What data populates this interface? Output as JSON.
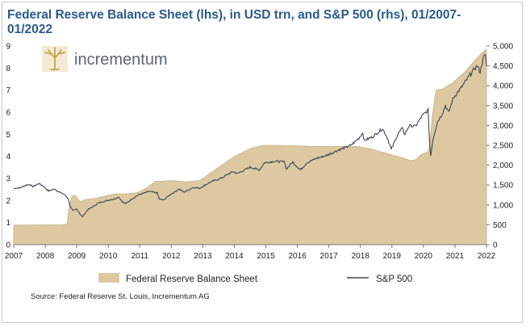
{
  "header": {
    "title": "Federal Reserve Balance Sheet (lhs), in USD trn, and S&P 500 (rhs), 01/2007-01/2022"
  },
  "logo": {
    "text": "incrementum"
  },
  "footer": {
    "source": "Source: Federal Reserve St. Louis, Incrementum AG"
  },
  "colors": {
    "fed_fill": "#dcc9a2",
    "fed_edge": "#c7ad80",
    "sp_line": "#3b4452",
    "title": "#2b5a8a",
    "logo_text": "#5a6470",
    "logo_gold": "#c9a24a"
  },
  "chart_data": {
    "type": "area",
    "title": "Federal Reserve Balance Sheet (lhs), in USD trn, and S&P 500 (rhs), 01/2007-01/2022",
    "x_ticks": [
      "2007",
      "2008",
      "2009",
      "2010",
      "2011",
      "2012",
      "2013",
      "2014",
      "2015",
      "2016",
      "2017",
      "2018",
      "2019",
      "2020",
      "2021",
      "2022"
    ],
    "xlim": [
      2007,
      2022
    ],
    "y_left": {
      "ticks": [
        "0",
        "1",
        "2",
        "3",
        "4",
        "5",
        "6",
        "7",
        "8",
        "9"
      ],
      "lim": [
        0,
        9
      ]
    },
    "y_right": {
      "ticks": [
        "0",
        "500",
        "1,000",
        "1,500",
        "2,000",
        "2,500",
        "3,000",
        "3,500",
        "4,000",
        "4,500",
        "5,000"
      ],
      "lim": [
        0,
        5000
      ]
    },
    "legend": "bottom",
    "grid": false,
    "series": [
      {
        "name": "Federal Reserve Balance Sheet",
        "type": "area",
        "axis": "left",
        "points": [
          [
            2007.0,
            0.88
          ],
          [
            2008.5,
            0.9
          ],
          [
            2008.7,
            0.93
          ],
          [
            2008.72,
            1.3
          ],
          [
            2008.78,
            1.85
          ],
          [
            2008.85,
            2.2
          ],
          [
            2008.95,
            2.24
          ],
          [
            2009.1,
            1.95
          ],
          [
            2009.3,
            2.05
          ],
          [
            2009.6,
            2.1
          ],
          [
            2009.9,
            2.2
          ],
          [
            2010.2,
            2.3
          ],
          [
            2010.6,
            2.3
          ],
          [
            2010.9,
            2.35
          ],
          [
            2011.2,
            2.55
          ],
          [
            2011.5,
            2.86
          ],
          [
            2012.0,
            2.9
          ],
          [
            2012.5,
            2.85
          ],
          [
            2012.9,
            2.9
          ],
          [
            2013.2,
            3.2
          ],
          [
            2013.6,
            3.6
          ],
          [
            2014.0,
            4.0
          ],
          [
            2014.5,
            4.35
          ],
          [
            2014.9,
            4.5
          ],
          [
            2015.5,
            4.5
          ],
          [
            2016.5,
            4.45
          ],
          [
            2017.5,
            4.45
          ],
          [
            2017.9,
            4.45
          ],
          [
            2018.3,
            4.35
          ],
          [
            2018.8,
            4.15
          ],
          [
            2019.3,
            3.95
          ],
          [
            2019.6,
            3.8
          ],
          [
            2019.75,
            3.85
          ],
          [
            2019.95,
            4.1
          ],
          [
            2020.15,
            4.2
          ],
          [
            2020.2,
            4.5
          ],
          [
            2020.28,
            5.8
          ],
          [
            2020.4,
            7.0
          ],
          [
            2020.6,
            7.05
          ],
          [
            2020.9,
            7.3
          ],
          [
            2021.3,
            7.8
          ],
          [
            2021.6,
            8.3
          ],
          [
            2021.9,
            8.75
          ],
          [
            2022.0,
            8.85
          ]
        ]
      },
      {
        "name": "S&P 500",
        "type": "line",
        "axis": "right",
        "points": [
          [
            2007.0,
            1420
          ],
          [
            2007.2,
            1430
          ],
          [
            2007.4,
            1500
          ],
          [
            2007.5,
            1520
          ],
          [
            2007.6,
            1460
          ],
          [
            2007.8,
            1540
          ],
          [
            2007.95,
            1470
          ],
          [
            2008.1,
            1350
          ],
          [
            2008.3,
            1400
          ],
          [
            2008.45,
            1320
          ],
          [
            2008.6,
            1270
          ],
          [
            2008.72,
            1170
          ],
          [
            2008.8,
            950
          ],
          [
            2008.88,
            850
          ],
          [
            2009.0,
            900
          ],
          [
            2009.1,
            780
          ],
          [
            2009.18,
            700
          ],
          [
            2009.35,
            880
          ],
          [
            2009.5,
            950
          ],
          [
            2009.7,
            1050
          ],
          [
            2009.95,
            1110
          ],
          [
            2010.2,
            1150
          ],
          [
            2010.33,
            1200
          ],
          [
            2010.45,
            1080
          ],
          [
            2010.55,
            1030
          ],
          [
            2010.75,
            1150
          ],
          [
            2010.95,
            1250
          ],
          [
            2011.3,
            1340
          ],
          [
            2011.55,
            1300
          ],
          [
            2011.62,
            1150
          ],
          [
            2011.75,
            1120
          ],
          [
            2011.95,
            1250
          ],
          [
            2012.25,
            1400
          ],
          [
            2012.4,
            1320
          ],
          [
            2012.7,
            1440
          ],
          [
            2012.9,
            1420
          ],
          [
            2013.2,
            1560
          ],
          [
            2013.6,
            1680
          ],
          [
            2013.95,
            1840
          ],
          [
            2014.1,
            1790
          ],
          [
            2014.5,
            1950
          ],
          [
            2014.8,
            1880
          ],
          [
            2014.95,
            2060
          ],
          [
            2015.3,
            2100
          ],
          [
            2015.6,
            2080
          ],
          [
            2015.65,
            1900
          ],
          [
            2015.85,
            2080
          ],
          [
            2016.1,
            1880
          ],
          [
            2016.3,
            2060
          ],
          [
            2016.6,
            2170
          ],
          [
            2016.9,
            2240
          ],
          [
            2017.3,
            2380
          ],
          [
            2017.7,
            2500
          ],
          [
            2017.95,
            2680
          ],
          [
            2018.08,
            2820
          ],
          [
            2018.12,
            2620
          ],
          [
            2018.4,
            2720
          ],
          [
            2018.7,
            2920
          ],
          [
            2018.85,
            2700
          ],
          [
            2018.98,
            2400
          ],
          [
            2019.2,
            2800
          ],
          [
            2019.35,
            2940
          ],
          [
            2019.4,
            2760
          ],
          [
            2019.55,
            3000
          ],
          [
            2019.75,
            2980
          ],
          [
            2019.95,
            3230
          ],
          [
            2020.1,
            3350
          ],
          [
            2020.15,
            3380
          ],
          [
            2020.2,
            2500
          ],
          [
            2020.23,
            2240
          ],
          [
            2020.3,
            2650
          ],
          [
            2020.45,
            3100
          ],
          [
            2020.6,
            3300
          ],
          [
            2020.7,
            3500
          ],
          [
            2020.8,
            3320
          ],
          [
            2020.95,
            3700
          ],
          [
            2021.2,
            3950
          ],
          [
            2021.5,
            4300
          ],
          [
            2021.7,
            4500
          ],
          [
            2021.8,
            4350
          ],
          [
            2021.9,
            4700
          ],
          [
            2021.97,
            4780
          ],
          [
            2022.0,
            4500
          ]
        ]
      }
    ]
  }
}
